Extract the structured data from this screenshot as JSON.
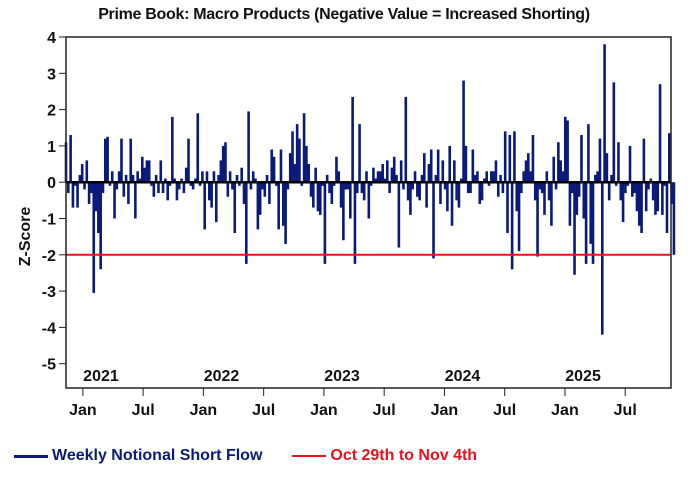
{
  "chart_data": {
    "type": "bar",
    "title": "Prime Book: Macro Products (Negative Value = Increased Shorting)",
    "xlabel": "",
    "ylabel": "Z-Score",
    "ylim": [
      -5.67,
      4
    ],
    "yticks": [
      4,
      3,
      2,
      1,
      0,
      -1,
      -2,
      -3,
      -4,
      -5
    ],
    "xlim_years": [
      2020.86,
      2025.88
    ],
    "x_month_ticks": [
      {
        "label": "Jan",
        "year": 2021.0
      },
      {
        "label": "Jul",
        "year": 2021.5
      },
      {
        "label": "Jan",
        "year": 2022.0
      },
      {
        "label": "Jul",
        "year": 2022.5
      },
      {
        "label": "Jan",
        "year": 2023.0
      },
      {
        "label": "Jul",
        "year": 2023.5
      },
      {
        "label": "Jan",
        "year": 2024.0
      },
      {
        "label": "Jul",
        "year": 2024.5
      },
      {
        "label": "Jan",
        "year": 2025.0
      },
      {
        "label": "Jul",
        "year": 2025.5
      }
    ],
    "year_labels": [
      {
        "label": "2021",
        "year": 2021.2
      },
      {
        "label": "2022",
        "year": 2022.2
      },
      {
        "label": "2023",
        "year": 2023.2
      },
      {
        "label": "2024",
        "year": 2024.2
      },
      {
        "label": "2025",
        "year": 2025.2
      }
    ],
    "grid": false,
    "legend_position": "bottom-left",
    "series": [
      {
        "name": "Weekly Notional Short Flow",
        "color": "#0a1a7a",
        "start_year": 2020.86,
        "step_years": 0.01918,
        "values": [
          1.1,
          -0.3,
          1.3,
          -0.7,
          -0.1,
          -0.7,
          0.2,
          0.5,
          -0.2,
          0.6,
          -0.6,
          -0.3,
          -3.05,
          -0.8,
          -1.4,
          -2.4,
          -0.3,
          1.2,
          1.25,
          -0.1,
          0.3,
          -1.0,
          -0.2,
          0.3,
          1.2,
          -0.4,
          0.2,
          -0.6,
          1.2,
          0.2,
          -1.0,
          0.3,
          0.1,
          0.7,
          0.4,
          0.6,
          0.6,
          -0.1,
          -0.4,
          0.2,
          -0.3,
          0.6,
          -0.3,
          0.1,
          -0.5,
          -0.1,
          1.8,
          0.1,
          -0.5,
          -0.2,
          0.1,
          -0.3,
          0.4,
          1.2,
          -0.1,
          -0.2,
          0.1,
          1.9,
          -0.1,
          0.3,
          -1.3,
          0.3,
          -0.5,
          -0.7,
          0.3,
          -1.1,
          0.2,
          0.6,
          1.0,
          1.1,
          -0.4,
          0.3,
          -0.2,
          -1.4,
          0.2,
          -0.1,
          0.4,
          -0.6,
          -2.25,
          1.95,
          -0.2,
          0.3,
          0.1,
          -1.3,
          -0.9,
          -0.2,
          -0.4,
          0.2,
          -0.6,
          0.9,
          0.7,
          -0.1,
          -1.3,
          0.9,
          -1.2,
          -1.7,
          -0.2,
          0.8,
          1.4,
          0.5,
          1.6,
          1.2,
          -0.1,
          1.9,
          1.0,
          0.5,
          -0.4,
          -0.7,
          0.4,
          -0.8,
          -0.9,
          -0.1,
          -2.25,
          0.2,
          -0.3,
          -0.6,
          -0.1,
          0.7,
          0.3,
          -0.7,
          -1.6,
          -0.2,
          -0.2,
          -1.0,
          2.35,
          -2.25,
          -0.3,
          1.6,
          -0.3,
          -0.5,
          0.3,
          -1.0,
          -0.1,
          0.4,
          0.1,
          0.3,
          0.3,
          0.5,
          0.1,
          0.6,
          -0.3,
          0.4,
          0.7,
          0.2,
          -1.8,
          0.6,
          -0.2,
          2.35,
          -0.5,
          -0.9,
          -0.2,
          0.3,
          -0.4,
          -0.5,
          0.2,
          0.8,
          -0.7,
          0.5,
          0.9,
          -2.1,
          0.2,
          0.9,
          -0.6,
          0.6,
          -0.2,
          -0.8,
          1.0,
          -1.2,
          0.6,
          -0.5,
          -0.7,
          0.1,
          2.8,
          1.0,
          -0.3,
          -0.3,
          0.9,
          0.2,
          0.3,
          -0.6,
          -0.5,
          0.1,
          0.3,
          -0.1,
          0.3,
          0.3,
          0.6,
          -0.4,
          0.2,
          -0.3,
          1.4,
          -1.4,
          1.3,
          -2.4,
          1.4,
          -0.8,
          -1.9,
          -0.3,
          0.3,
          0.6,
          0.8,
          0.3,
          1.3,
          -0.5,
          -2.05,
          -0.2,
          -0.3,
          -0.9,
          0.3,
          -0.5,
          -1.2,
          0.7,
          -0.2,
          1.1,
          0.6,
          0.3,
          1.8,
          1.7,
          -1.2,
          -0.3,
          -2.55,
          -0.9,
          -0.4,
          1.3,
          -1.0,
          -2.25,
          1.6,
          -1.7,
          -2.25,
          0.2,
          0.3,
          1.2,
          -4.2,
          3.8,
          0.8,
          -0.5,
          0.2,
          2.75,
          -0.1,
          1.1,
          -0.5,
          -1.1,
          -0.3,
          -0.1,
          1.0,
          -0.4,
          -0.3,
          -0.8,
          -1.2,
          -1.4,
          1.2,
          -0.8,
          -0.2,
          0.1,
          -0.5,
          -0.9,
          -0.8,
          2.7,
          -0.9,
          -0.1,
          -1.4,
          1.35,
          -0.6,
          -2.0
        ]
      }
    ],
    "reference_lines": [
      {
        "name": "Oct 29th to Nov 4th",
        "value": -2.0,
        "color": "#e8101e"
      }
    ]
  },
  "legend": {
    "series_label": "Weekly Notional Short Flow",
    "reference_label": "Oct 29th to Nov 4th",
    "series_color": "#0a1a7a",
    "reference_color": "#e8101e"
  }
}
